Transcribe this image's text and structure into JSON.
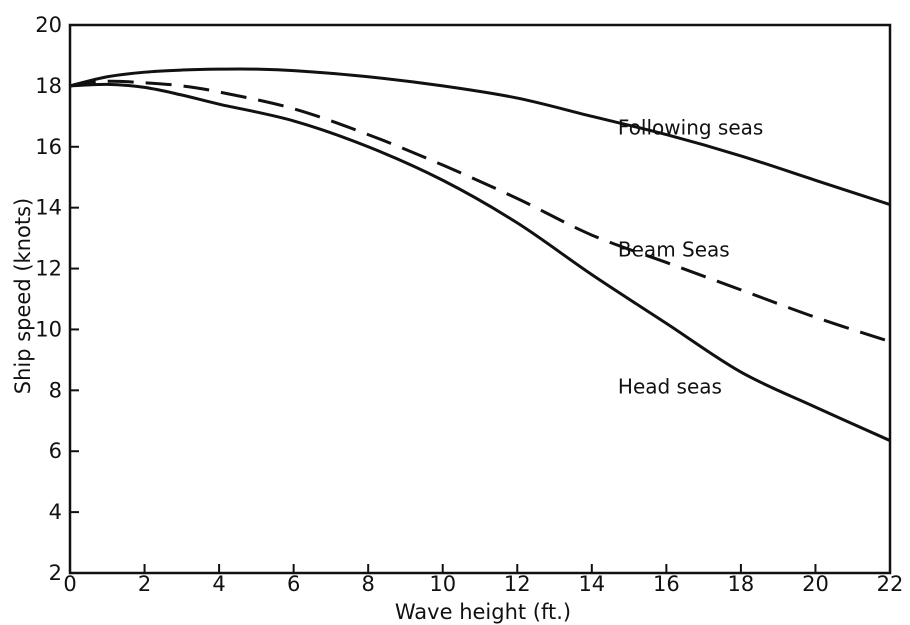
{
  "chart_data": {
    "type": "line",
    "title": "",
    "xlabel": "Wave height (ft.)",
    "ylabel": "Ship speed (knots)",
    "xlim": [
      0,
      22
    ],
    "ylim": [
      2,
      20
    ],
    "x_ticks": [
      0,
      2,
      4,
      6,
      8,
      10,
      12,
      14,
      16,
      18,
      20,
      22
    ],
    "y_ticks": [
      2,
      4,
      6,
      8,
      10,
      12,
      14,
      16,
      18,
      20
    ],
    "x_tick_labels": [
      "0",
      "2",
      "4",
      "6",
      "8",
      "10",
      "12",
      "14",
      "16",
      "18",
      "20",
      "22"
    ],
    "y_tick_labels": [
      "2",
      "4",
      "6",
      "8",
      "10",
      "12",
      "14",
      "16",
      "18",
      "20"
    ],
    "grid": false,
    "legend": "none",
    "series": [
      {
        "name": "Following seas",
        "style": "solid",
        "x": [
          0,
          1,
          2,
          3,
          4,
          5,
          6,
          8,
          10,
          12,
          14,
          16,
          18,
          20,
          22
        ],
        "values": [
          18.0,
          18.3,
          18.45,
          18.52,
          18.55,
          18.55,
          18.5,
          18.3,
          18.0,
          17.6,
          17.0,
          16.4,
          15.7,
          14.9,
          14.1
        ]
      },
      {
        "name": "Beam Seas",
        "style": "dashed",
        "x": [
          0,
          1,
          2,
          3,
          4,
          6,
          8,
          10,
          12,
          14,
          16,
          18,
          20,
          22
        ],
        "values": [
          18.0,
          18.15,
          18.1,
          18.0,
          17.8,
          17.25,
          16.4,
          15.4,
          14.3,
          13.1,
          12.2,
          11.3,
          10.4,
          9.6
        ]
      },
      {
        "name": "Head seas",
        "style": "solid",
        "x": [
          0,
          1,
          2,
          3,
          4,
          6,
          8,
          10,
          12,
          14,
          16,
          18,
          20,
          22
        ],
        "values": [
          18.0,
          18.05,
          17.95,
          17.7,
          17.4,
          16.85,
          16.0,
          14.9,
          13.5,
          11.8,
          10.2,
          8.6,
          7.45,
          6.35
        ]
      }
    ],
    "annotations": [
      {
        "text": "Following seas",
        "x": 14.7,
        "y": 16.4
      },
      {
        "text": "Beam Seas",
        "x": 14.7,
        "y": 12.4
      },
      {
        "text": "Head seas",
        "x": 14.7,
        "y": 7.9
      }
    ],
    "colors": {
      "line": "#111111",
      "frame": "#111111",
      "background": "#ffffff"
    }
  }
}
